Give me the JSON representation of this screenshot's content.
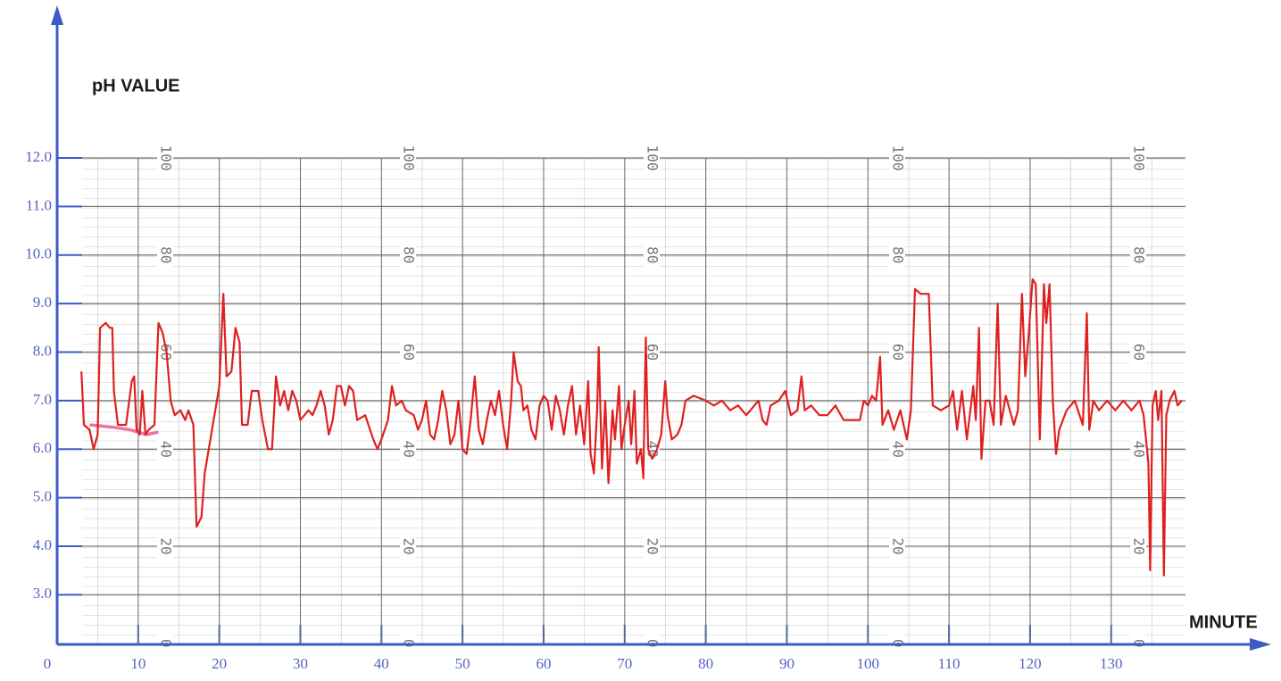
{
  "chart_data": {
    "type": "line",
    "y_label": "pH VALUE",
    "x_label": "MINUTE",
    "xlim": [
      0,
      139
    ],
    "xticks": [
      0,
      10,
      20,
      30,
      40,
      50,
      60,
      70,
      80,
      90,
      100,
      110,
      120,
      130
    ],
    "ylim": [
      2,
      12
    ],
    "yticks": [
      {
        "value": 3,
        "label": "3.0"
      },
      {
        "value": 4,
        "label": "4.0"
      },
      {
        "value": 5,
        "label": "5.0"
      },
      {
        "value": 6,
        "label": "6.0"
      },
      {
        "value": 7,
        "label": "7.0"
      },
      {
        "value": 8,
        "label": "8.0"
      },
      {
        "value": 9,
        "label": "9.0"
      },
      {
        "value": 10,
        "label": "10.0"
      },
      {
        "value": 11,
        "label": "11.0"
      },
      {
        "value": 12,
        "label": "12.0"
      }
    ],
    "y2lim": [
      0,
      100
    ],
    "y2ticks": [
      0,
      20,
      40,
      60,
      80,
      100
    ],
    "grid": true,
    "series": [
      {
        "color": "#e02020",
        "x": [
          3.0,
          3.3,
          4.0,
          4.5,
          5.0,
          5.3,
          6.0,
          6.5,
          6.8,
          7.0,
          7.5,
          8.5,
          9.2,
          9.5,
          9.8,
          10.2,
          10.5,
          10.9,
          11.3,
          12.0,
          12.5,
          13.0,
          13.5,
          14.0,
          14.5,
          15.2,
          15.8,
          16.2,
          16.8,
          17.2,
          17.8,
          18.2,
          19.0,
          20.0,
          20.5,
          20.9,
          21.5,
          22.0,
          22.5,
          22.8,
          23.5,
          24.0,
          24.8,
          25.3,
          26.0,
          26.5,
          27.0,
          27.5,
          28.0,
          28.5,
          29.0,
          29.5,
          30.0,
          31.0,
          31.5,
          32.0,
          32.5,
          33.0,
          33.5,
          34.0,
          34.5,
          35.0,
          35.5,
          36.0,
          36.5,
          37.0,
          38.0,
          39.0,
          39.5,
          40.0,
          40.8,
          41.3,
          41.8,
          42.5,
          43.0,
          44.0,
          44.5,
          45.0,
          45.5,
          46.0,
          46.5,
          47.0,
          47.5,
          48.0,
          48.5,
          49.0,
          49.5,
          50.0,
          50.5,
          51.0,
          51.5,
          52.0,
          52.5,
          53.0,
          53.5,
          54.0,
          54.5,
          55.0,
          55.5,
          56.0,
          56.3,
          56.8,
          57.2,
          57.5,
          58.0,
          58.5,
          59.0,
          59.5,
          60.0,
          60.5,
          61.0,
          61.5,
          62.0,
          62.5,
          63.0,
          63.5,
          64.0,
          64.5,
          65.0,
          65.5,
          65.8,
          66.2,
          66.6,
          66.8,
          67.2,
          67.6,
          68.0,
          68.5,
          68.8,
          69.3,
          69.6,
          70.0,
          70.5,
          70.8,
          71.2,
          71.5,
          72.0,
          72.3,
          72.6,
          72.9,
          73.4,
          74.0,
          74.5,
          75.0,
          75.3,
          75.8,
          76.5,
          77.0,
          77.5,
          78.5,
          80.0,
          81.0,
          82.0,
          83.0,
          84.0,
          85.0,
          86.0,
          86.5,
          87.0,
          87.5,
          88.0,
          89.0,
          89.8,
          90.5,
          91.3,
          91.8,
          92.2,
          93.0,
          94.0,
          95.0,
          96.0,
          97.0,
          98.0,
          99.0,
          99.5,
          100.0,
          100.5,
          101.0,
          101.5,
          101.8,
          102.5,
          103.2,
          104.0,
          104.8,
          105.3,
          105.8,
          106.5,
          107.5,
          108.0,
          109.0,
          110.0,
          110.5,
          111.0,
          111.6,
          112.2,
          113.0,
          113.3,
          113.7,
          114.0,
          114.5,
          115.0,
          115.5,
          116.0,
          116.4,
          117.0,
          117.5,
          118.0,
          118.5,
          119.0,
          119.4,
          119.8,
          120.3,
          120.7,
          121.2,
          121.7,
          122.0,
          122.4,
          122.8,
          123.2,
          123.6,
          124.5,
          125.5,
          126.5,
          127.0,
          127.3,
          127.8,
          128.5,
          129.5,
          130.5,
          131.5,
          132.5,
          133.5,
          134.0,
          134.6,
          134.8,
          135.1,
          135.5,
          135.8,
          136.2,
          136.5,
          136.8,
          137.2,
          137.8,
          138.2,
          138.7
        ],
        "values": [
          7.6,
          6.5,
          6.4,
          6.0,
          6.3,
          8.5,
          8.6,
          8.5,
          8.5,
          7.2,
          6.5,
          6.5,
          7.4,
          7.5,
          6.4,
          6.3,
          7.2,
          6.3,
          6.4,
          6.5,
          8.6,
          8.4,
          8.0,
          7.0,
          6.7,
          6.8,
          6.6,
          6.8,
          6.5,
          4.4,
          4.6,
          5.5,
          6.3,
          7.3,
          9.2,
          7.5,
          7.6,
          8.5,
          8.2,
          6.5,
          6.5,
          7.2,
          7.2,
          6.6,
          6.0,
          6.0,
          7.5,
          6.9,
          7.2,
          6.8,
          7.2,
          7.0,
          6.6,
          6.8,
          6.7,
          6.9,
          7.2,
          6.9,
          6.3,
          6.6,
          7.3,
          7.3,
          6.9,
          7.3,
          7.2,
          6.6,
          6.7,
          6.2,
          6.0,
          6.2,
          6.6,
          7.3,
          6.9,
          7.0,
          6.8,
          6.7,
          6.4,
          6.6,
          7.0,
          6.3,
          6.2,
          6.6,
          7.2,
          6.8,
          6.1,
          6.3,
          7.0,
          6.0,
          5.9,
          6.6,
          7.5,
          6.4,
          6.1,
          6.6,
          7.0,
          6.7,
          7.2,
          6.5,
          6.0,
          7.0,
          8.0,
          7.4,
          7.3,
          6.8,
          6.9,
          6.4,
          6.2,
          6.9,
          7.1,
          7.0,
          6.4,
          7.1,
          6.8,
          6.3,
          6.9,
          7.3,
          6.3,
          6.9,
          6.1,
          7.4,
          5.9,
          5.5,
          6.8,
          8.1,
          5.6,
          7.0,
          5.3,
          6.8,
          6.2,
          7.3,
          6.0,
          6.5,
          7.0,
          6.1,
          7.2,
          5.7,
          6.0,
          5.4,
          8.3,
          6.0,
          5.8,
          6.0,
          6.3,
          7.4,
          6.7,
          6.2,
          6.3,
          6.5,
          7.0,
          7.1,
          7.0,
          6.9,
          7.0,
          6.8,
          6.9,
          6.7,
          6.9,
          7.0,
          6.6,
          6.5,
          6.9,
          7.0,
          7.2,
          6.7,
          6.8,
          7.5,
          6.8,
          6.9,
          6.7,
          6.7,
          6.9,
          6.6,
          6.6,
          6.6,
          7.0,
          6.9,
          7.1,
          7.0,
          7.9,
          6.5,
          6.8,
          6.4,
          6.8,
          6.2,
          6.8,
          9.3,
          9.2,
          9.2,
          6.9,
          6.8,
          6.9,
          7.2,
          6.4,
          7.2,
          6.2,
          7.3,
          6.6,
          8.5,
          5.8,
          7.0,
          7.0,
          6.5,
          9.0,
          6.5,
          7.1,
          6.8,
          6.5,
          6.8,
          9.2,
          7.5,
          8.3,
          9.5,
          9.4,
          6.2,
          9.4,
          8.6,
          9.4,
          7.0,
          5.9,
          6.4,
          6.8,
          7.0,
          6.5,
          8.8,
          6.4,
          7.0,
          6.8,
          7.0,
          6.8,
          7.0,
          6.8,
          7.0,
          6.7,
          5.7,
          3.5,
          6.9,
          7.2,
          6.6,
          7.2,
          3.4,
          6.7,
          7.0,
          7.2,
          6.9,
          7.0
        ]
      },
      {
        "color": "#e8508a",
        "x": [
          4.0,
          7.0,
          9.0,
          11.0,
          12.5
        ],
        "values": [
          6.5,
          6.45,
          6.4,
          6.3,
          6.35
        ]
      }
    ]
  }
}
